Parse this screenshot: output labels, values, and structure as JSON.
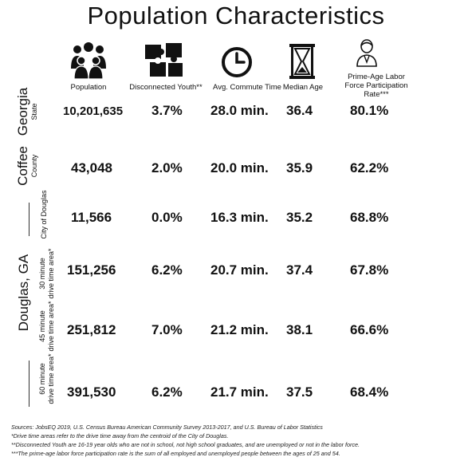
{
  "title": "Population Characteristics",
  "columns": [
    {
      "label": "Population",
      "icon": "people-group-icon"
    },
    {
      "label": "Disconnected Youth**",
      "icon": "puzzle-pieces-icon"
    },
    {
      "label": "Avg. Commute Time",
      "icon": "clock-icon"
    },
    {
      "label": "Median Age",
      "icon": "hourglass-icon"
    },
    {
      "label": "Prime-Age Labor Force Participation Rate***",
      "icon": "businesswoman-icon"
    }
  ],
  "groups": {
    "georgia": {
      "name": "Georgia",
      "sub": "State"
    },
    "coffee": {
      "name": "Coffee",
      "sub": "County"
    },
    "douglas": {
      "name": "Douglas, GA"
    }
  },
  "rows": [
    {
      "label": "Georgia State",
      "values": [
        "10,201,635",
        "3.7%",
        "28.0 min.",
        "36.4",
        "80.1%"
      ]
    },
    {
      "label": "Coffee County",
      "values": [
        "43,048",
        "2.0%",
        "20.0 min.",
        "35.9",
        "62.2%"
      ]
    },
    {
      "label": "City of Douglas",
      "values": [
        "11,566",
        "0.0%",
        "16.3 min.",
        "35.2",
        "68.8%"
      ]
    },
    {
      "label_line1": "30 minute",
      "label_line2": "drive time area*",
      "values": [
        "151,256",
        "6.2%",
        "20.7 min.",
        "37.4",
        "67.8%"
      ]
    },
    {
      "label_line1": "45 minute",
      "label_line2": "drive time area*",
      "values": [
        "251,812",
        "7.0%",
        "21.2 min.",
        "38.1",
        "66.6%"
      ]
    },
    {
      "label_line1": "60 minute",
      "label_line2": "drive time area*",
      "values": [
        "391,530",
        "6.2%",
        "21.7 min.",
        "37.5",
        "68.4%"
      ]
    }
  ],
  "footnotes": [
    "Sources: JobsEQ 2019, U.S. Census Bureau American Community Survey 2013-2017, and U.S. Bureau of Labor Statistics",
    "*Drive time areas refer to the drive time away from the centroid of the City of Douglas.",
    "**Disconnected Youth are 16-19 year olds who are not in school, not high school graduates, and are unemployed or not in the labor force.",
    "***The prime-age labor force participation rate is the sum of all employed and unemployed people between the ages of 25 and 54."
  ]
}
